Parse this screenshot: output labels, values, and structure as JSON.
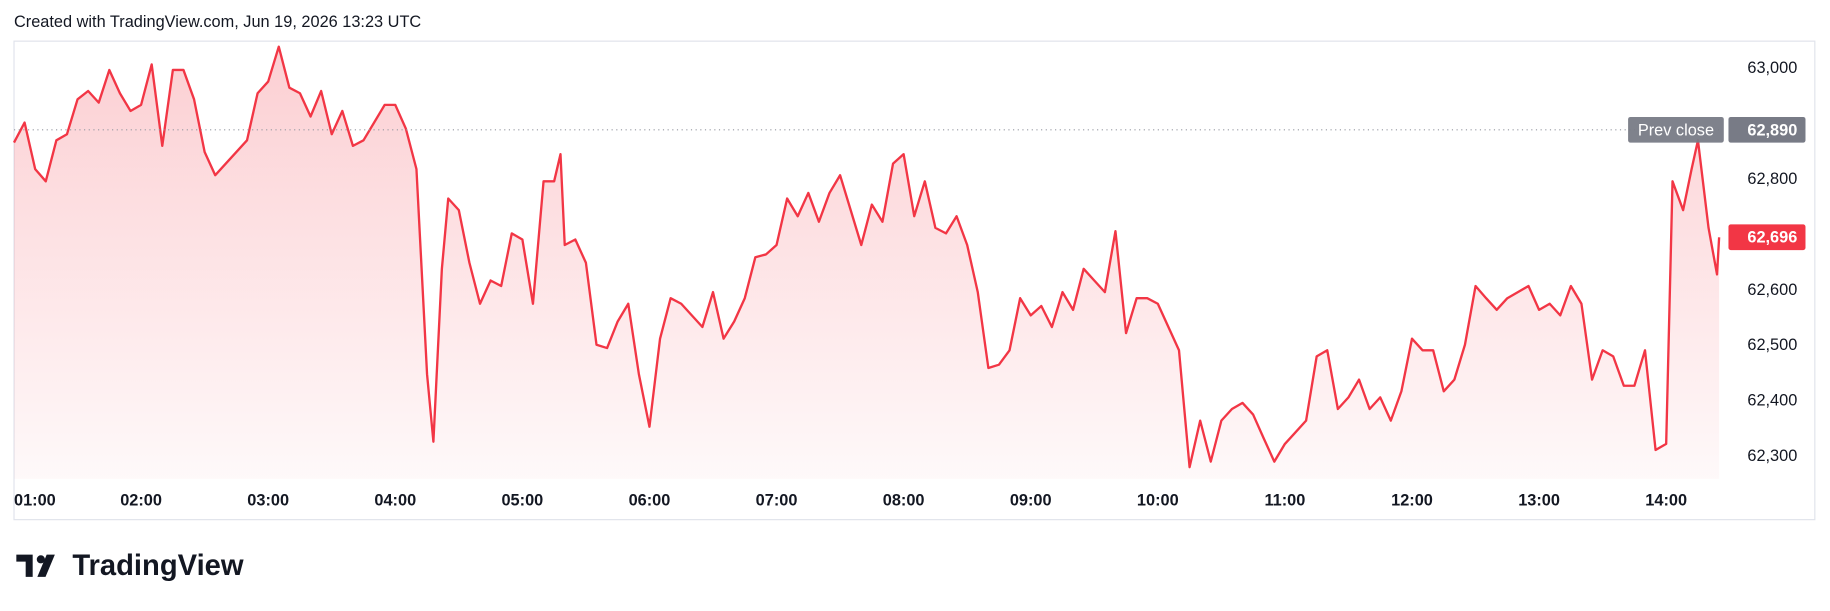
{
  "chart_data": {
    "type": "area",
    "title": "Created with TradingView.com, Jun 19, 2026 13:23 UTC",
    "brand": "TradingView",
    "color": "#f23645",
    "grid": false,
    "x": [
      "01:00",
      "01:05",
      "01:10",
      "01:15",
      "01:20",
      "01:25",
      "01:30",
      "01:35",
      "01:40",
      "01:45",
      "01:50",
      "01:55",
      "02:00",
      "02:05",
      "02:10",
      "02:15",
      "02:20",
      "02:25",
      "02:30",
      "02:35",
      "02:40",
      "02:45",
      "02:50",
      "02:55",
      "03:00",
      "03:05",
      "03:10",
      "03:15",
      "03:20",
      "03:25",
      "03:30",
      "03:35",
      "03:40",
      "03:45",
      "03:50",
      "03:55",
      "04:00",
      "04:05",
      "04:10",
      "04:15",
      "04:18",
      "04:22",
      "04:25",
      "04:30",
      "04:35",
      "04:40",
      "04:45",
      "04:50",
      "04:55",
      "05:00",
      "05:05",
      "05:10",
      "05:15",
      "05:18",
      "05:20",
      "05:25",
      "05:30",
      "05:35",
      "05:40",
      "05:45",
      "05:50",
      "05:55",
      "06:00",
      "06:05",
      "06:10",
      "06:15",
      "06:20",
      "06:25",
      "06:30",
      "06:35",
      "06:40",
      "06:45",
      "06:50",
      "06:55",
      "07:00",
      "07:05",
      "07:10",
      "07:15",
      "07:20",
      "07:25",
      "07:30",
      "07:35",
      "07:40",
      "07:45",
      "07:50",
      "07:55",
      "08:00",
      "08:05",
      "08:10",
      "08:15",
      "08:20",
      "08:25",
      "08:30",
      "08:35",
      "08:40",
      "08:45",
      "08:50",
      "08:55",
      "09:00",
      "09:05",
      "09:10",
      "09:15",
      "09:20",
      "09:25",
      "09:30",
      "09:35",
      "09:40",
      "09:45",
      "09:50",
      "09:55",
      "10:00",
      "10:05",
      "10:10",
      "10:12",
      "10:15",
      "10:20",
      "10:25",
      "10:30",
      "10:35",
      "10:40",
      "10:45",
      "10:50",
      "10:55",
      "11:00",
      "11:05",
      "11:10",
      "11:15",
      "11:20",
      "11:25",
      "11:30",
      "11:35",
      "11:40",
      "11:45",
      "11:50",
      "11:55",
      "12:00",
      "12:05",
      "12:10",
      "12:15",
      "12:20",
      "12:25",
      "12:30",
      "12:35",
      "12:40",
      "12:45",
      "12:50",
      "12:55",
      "13:00",
      "13:05",
      "13:10",
      "13:15",
      "13:20",
      "13:25",
      "13:30",
      "13:35",
      "13:40",
      "13:45",
      "13:50",
      "13:55",
      "14:00",
      "14:03",
      "14:08",
      "14:12",
      "14:15",
      "14:20",
      "14:24",
      "14:25"
    ],
    "values": [
      62867,
      62903,
      62819,
      62797,
      62871,
      62882,
      62945,
      62960,
      62939,
      62998,
      62956,
      62924,
      62935,
      63008,
      62861,
      62998,
      62998,
      62945,
      62850,
      62808,
      62829,
      62850,
      62871,
      62956,
      62977,
      63040,
      62966,
      62956,
      62914,
      62960,
      62882,
      62924,
      62861,
      62871,
      62903,
      62935,
      62935,
      62892,
      62819,
      62449,
      62327,
      62639,
      62766,
      62745,
      62650,
      62576,
      62618,
      62608,
      62703,
      62692,
      62576,
      62797,
      62797,
      62846,
      62682,
      62692,
      62650,
      62502,
      62496,
      62544,
      62576,
      62449,
      62354,
      62513,
      62586,
      62576,
      62555,
      62534,
      62597,
      62513,
      62544,
      62586,
      62660,
      62665,
      62682,
      62766,
      62734,
      62776,
      62724,
      62776,
      62808,
      62745,
      62682,
      62755,
      62724,
      62829,
      62846,
      62734,
      62797,
      62713,
      62703,
      62734,
      62682,
      62597,
      62460,
      62466,
      62492,
      62586,
      62555,
      62572,
      62534,
      62597,
      62565,
      62639,
      62618,
      62597,
      62707,
      62523,
      62586,
      62586,
      62576,
      62534,
      62492,
      62407,
      62281,
      62365,
      62291,
      62365,
      62386,
      62397,
      62376,
      62333,
      62291,
      62323,
      62344,
      62365,
      62481,
      62492,
      62386,
      62407,
      62439,
      62386,
      62407,
      62365,
      62418,
      62513,
      62492,
      62492,
      62418,
      62439,
      62502,
      62608,
      62586,
      62565,
      62586,
      62597,
      62608,
      62565,
      62576,
      62555,
      62608,
      62576,
      62439,
      62492,
      62481,
      62428,
      62428,
      62492,
      62312,
      62323,
      62797,
      62745,
      62819,
      62871,
      62713,
      62629,
      62696
    ],
    "xlim": [
      "01:00",
      "14:25"
    ],
    "xticks": [
      "01:00",
      "02:00",
      "03:00",
      "04:00",
      "05:00",
      "06:00",
      "07:00",
      "08:00",
      "09:00",
      "10:00",
      "11:00",
      "12:00",
      "13:00",
      "14:00"
    ],
    "ylim": [
      62260,
      63050
    ],
    "yticks": [
      {
        "value": 62300,
        "label": "62,300"
      },
      {
        "value": 62400,
        "label": "62,400"
      },
      {
        "value": 62500,
        "label": "62,500"
      },
      {
        "value": 62600,
        "label": "62,600"
      },
      {
        "value": 62700,
        "label": "62,700"
      },
      {
        "value": 62800,
        "label": "62,800"
      },
      {
        "value": 62900,
        "label": "62,900"
      },
      {
        "value": 63000,
        "label": "63,000"
      }
    ],
    "prev_close": {
      "name": "Prev close",
      "value": 62890,
      "label": "62,890"
    },
    "last_price": {
      "value": 62696,
      "label": "62,696"
    }
  }
}
